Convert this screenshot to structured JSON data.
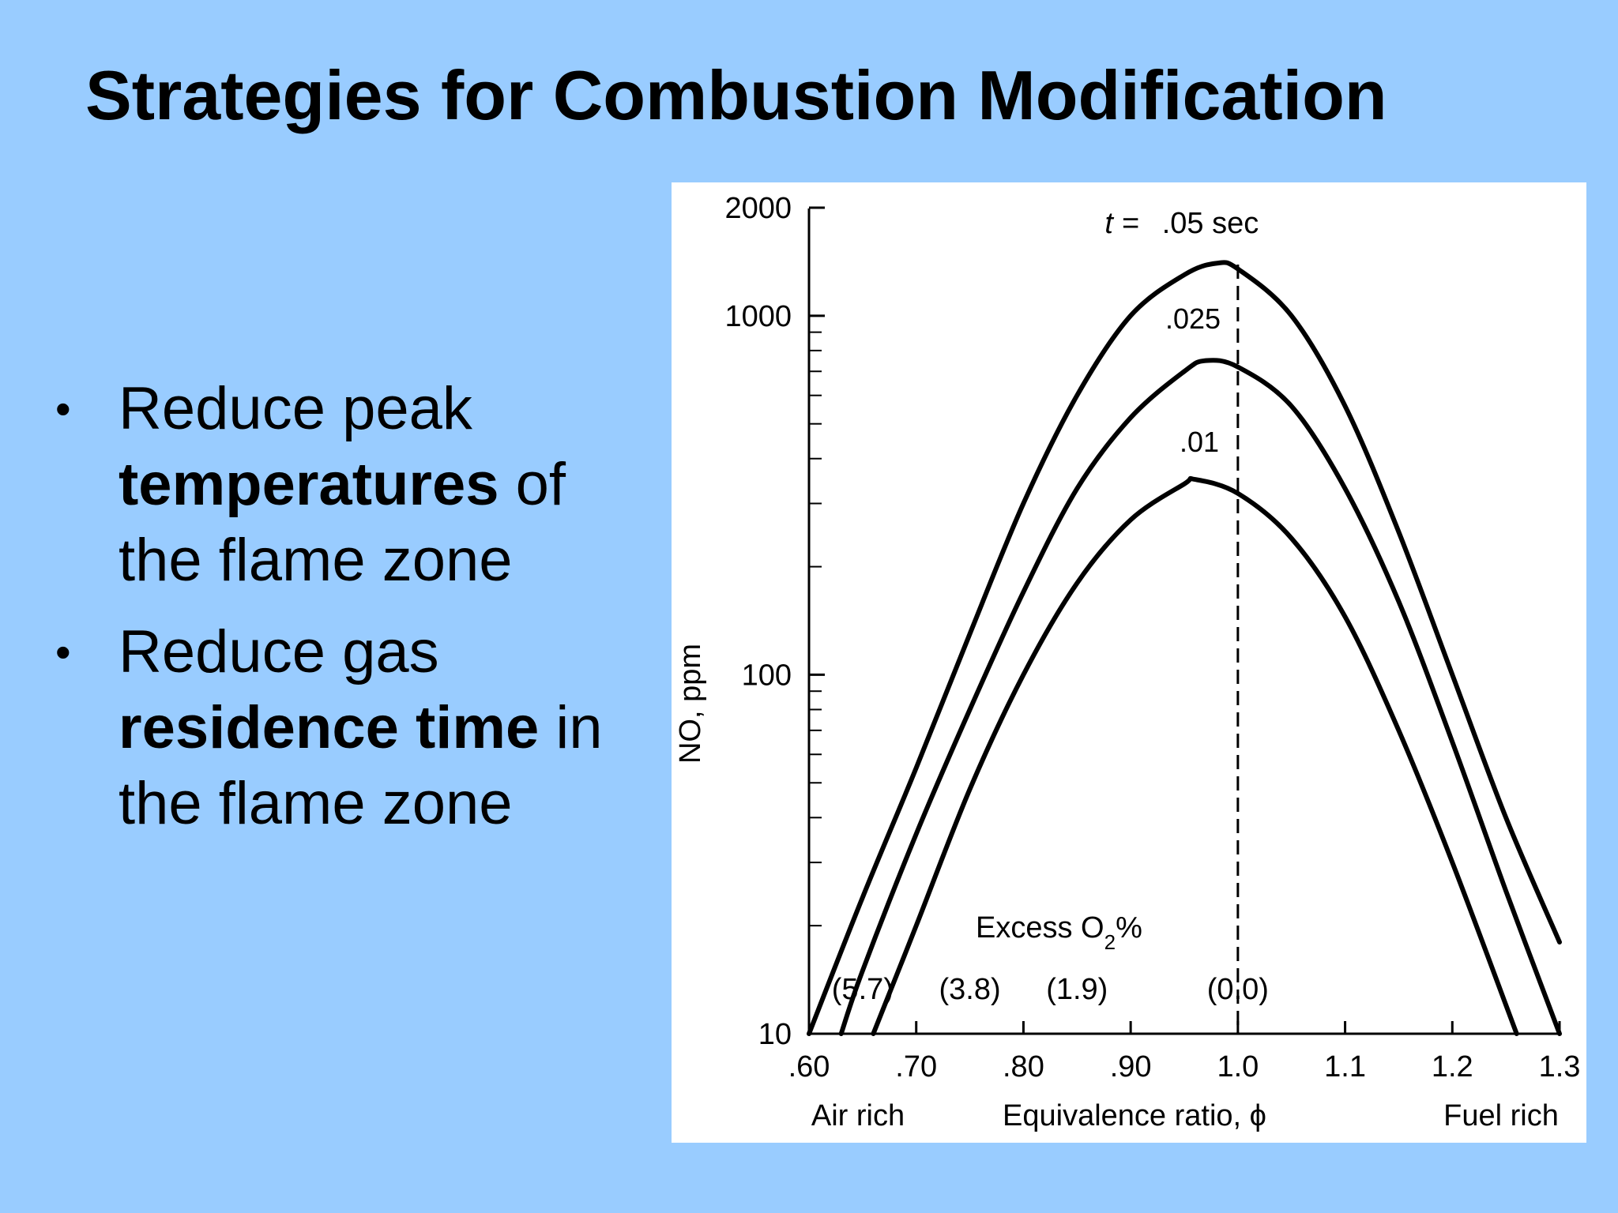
{
  "slide": {
    "title": "Strategies for Combustion Modification",
    "bullets": [
      {
        "pre": "Reduce peak ",
        "bold": "temperatures",
        "post": " of the flame zone"
      },
      {
        "pre": "Reduce gas ",
        "bold": "residence time",
        "post": " in the flame zone"
      }
    ],
    "bullet_glyph": "•"
  },
  "colors": {
    "background": "#99ccff",
    "chart_panel": "#ffffff",
    "ink": "#000000"
  },
  "chart_data": {
    "type": "line",
    "title": "",
    "xlabel": "Equivalence ratio, ϕ",
    "ylabel": "NO, ppm",
    "y_scale": "log",
    "xlim": [
      0.6,
      1.3
    ],
    "ylim": [
      10,
      2000
    ],
    "x_ticks": [
      0.6,
      0.7,
      0.8,
      0.9,
      1.0,
      1.1,
      1.2,
      1.3
    ],
    "x_tick_labels": [
      ".60",
      ".70",
      ".80",
      ".90",
      "1.0",
      "1.1",
      "1.2",
      "1.3"
    ],
    "y_ticks": [
      10,
      100,
      1000,
      2000
    ],
    "y_tick_labels": [
      "10",
      "100",
      "1000",
      "2000"
    ],
    "x_end_labels": {
      "left": "Air rich",
      "right": "Fuel rich"
    },
    "excess_o2": {
      "label_pre": "Excess O",
      "label_sub": "2",
      "label_post": "%",
      "markers": [
        {
          "x": 0.65,
          "text": "(5.7)"
        },
        {
          "x": 0.75,
          "text": "(3.8)"
        },
        {
          "x": 0.85,
          "text": "(1.9)"
        },
        {
          "x": 1.0,
          "text": "(0.0)"
        }
      ]
    },
    "reference_line": {
      "x": 1.0,
      "style": "dashed"
    },
    "time_prefix": "t = ",
    "series": [
      {
        "name": ".05 sec",
        "x": [
          0.6,
          0.65,
          0.7,
          0.75,
          0.8,
          0.85,
          0.9,
          0.95,
          0.98,
          1.0,
          1.05,
          1.1,
          1.15,
          1.2,
          1.25,
          1.3
        ],
        "y": [
          10,
          24,
          55,
          130,
          300,
          600,
          1000,
          1300,
          1400,
          1350,
          1000,
          560,
          250,
          100,
          40,
          18
        ]
      },
      {
        "name": ".025",
        "x": [
          0.63,
          0.65,
          0.7,
          0.75,
          0.8,
          0.85,
          0.9,
          0.95,
          0.97,
          1.0,
          1.05,
          1.1,
          1.15,
          1.2,
          1.25,
          1.3
        ],
        "y": [
          10,
          15,
          36,
          80,
          170,
          330,
          520,
          700,
          750,
          720,
          560,
          330,
          160,
          65,
          25,
          10
        ]
      },
      {
        "name": ".01",
        "x": [
          0.66,
          0.7,
          0.75,
          0.8,
          0.85,
          0.9,
          0.95,
          0.96,
          1.0,
          1.05,
          1.1,
          1.15,
          1.2,
          1.26
        ],
        "y": [
          10,
          20,
          48,
          100,
          180,
          270,
          340,
          350,
          320,
          240,
          145,
          70,
          30,
          10
        ]
      }
    ]
  }
}
